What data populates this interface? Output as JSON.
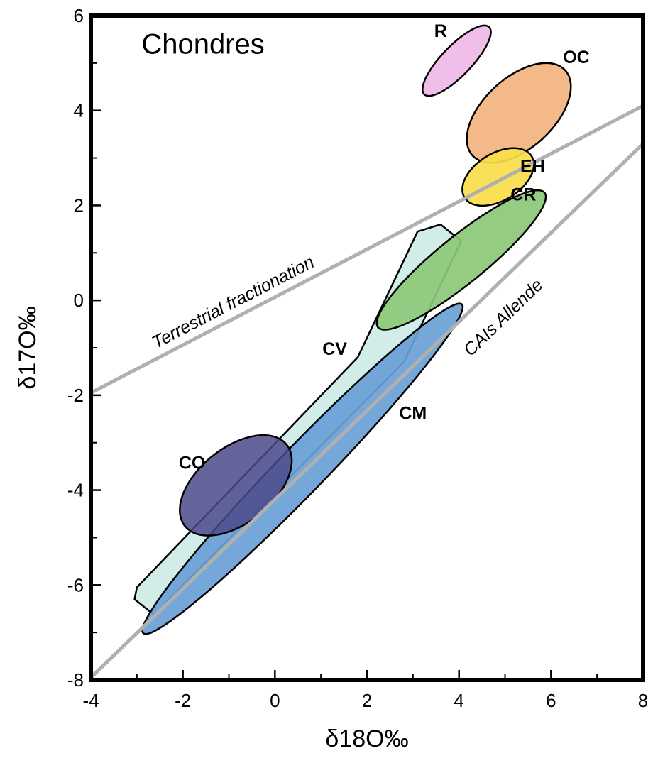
{
  "chart_data": {
    "type": "scatter",
    "title": "Chondres",
    "xlabel": "δ18O‰",
    "ylabel": "δ17O‰",
    "xlim": [
      -4,
      8
    ],
    "ylim": [
      -8,
      6
    ],
    "xticks": [
      -4,
      -2,
      0,
      2,
      4,
      6,
      8
    ],
    "yticks": [
      6,
      4,
      2,
      0,
      -2,
      -4,
      -6,
      -8
    ],
    "grid": false,
    "lines": [
      {
        "label": "Terrestrial fractionation",
        "x": [
          -4,
          8
        ],
        "y": [
          -1.95,
          4.1
        ],
        "color": "#b0b0b0"
      },
      {
        "label": "CAIs Allende",
        "x": [
          -4,
          8
        ],
        "y": [
          -7.95,
          3.3
        ],
        "color": "#b0b0b0"
      }
    ],
    "regions": [
      {
        "label": "CV",
        "shape": "polygon",
        "color": "#d2ece8",
        "points": [
          [
            -2.6,
            -6.65
          ],
          [
            -3.05,
            -6.3
          ],
          [
            -3.0,
            -6.05
          ],
          [
            1.8,
            -1.2
          ],
          [
            3.1,
            1.45
          ],
          [
            3.6,
            1.6
          ],
          [
            4.05,
            1.25
          ],
          [
            2.8,
            -1.3
          ],
          [
            -2.3,
            -6.3
          ]
        ]
      },
      {
        "label": "CM",
        "shape": "ellipse",
        "color": "#6a9fd6",
        "cx": 0.6,
        "cy": -3.55,
        "rx": 4.9,
        "ry": 0.5,
        "angle_deg": 45
      },
      {
        "label": "CO",
        "shape": "ellipse",
        "color": "#4a4a8a",
        "cx": -0.85,
        "cy": -3.9,
        "rx": 1.4,
        "ry": 0.8,
        "angle_deg": 37
      },
      {
        "label": "CR",
        "shape": "ellipse",
        "color": "#8cc878",
        "cx": 4.05,
        "cy": 0.85,
        "rx": 2.3,
        "ry": 0.5,
        "angle_deg": 38
      },
      {
        "label": "OC",
        "shape": "ellipse",
        "color": "#f2b37e",
        "cx": 5.3,
        "cy": 3.95,
        "rx": 1.35,
        "ry": 0.75,
        "angle_deg": 41
      },
      {
        "label": "EH",
        "shape": "ellipse",
        "color": "#f8dd4a",
        "cx": 4.85,
        "cy": 2.6,
        "rx": 0.85,
        "ry": 0.5,
        "angle_deg": 30
      },
      {
        "label": "R",
        "shape": "ellipse",
        "color": "#f0b8e8",
        "cx": 3.95,
        "cy": 5.05,
        "rx": 1.0,
        "ry": 0.32,
        "angle_deg": 45
      }
    ]
  }
}
